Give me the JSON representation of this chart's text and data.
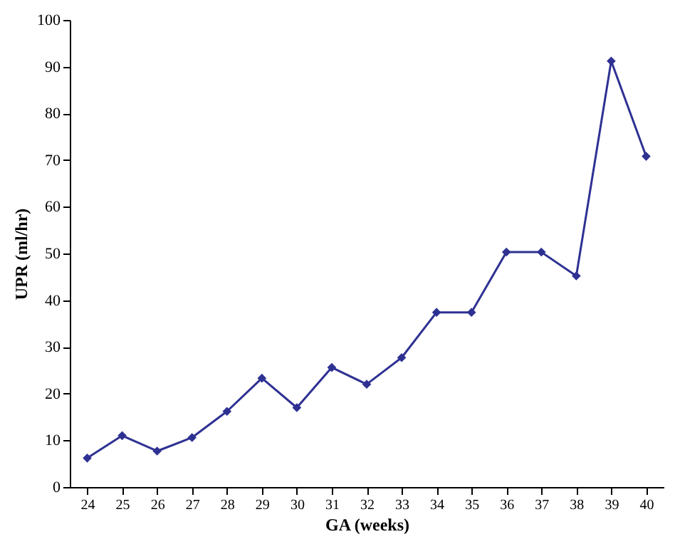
{
  "chart_data": {
    "type": "line",
    "xlabel": "GA (weeks)",
    "ylabel": "UPR (ml/hr)",
    "categories": [
      "24",
      "25",
      "26",
      "27",
      "28",
      "29",
      "30",
      "31",
      "32",
      "33",
      "34",
      "35",
      "36",
      "37",
      "38",
      "39",
      "40"
    ],
    "series": [
      {
        "color": "#2e3192",
        "values": [
          6.2,
          11,
          7.7,
          10.6,
          16.2,
          23.3,
          17,
          25.6,
          22,
          27.7,
          37.4,
          37.4,
          50.3,
          50.3,
          45.2,
          91.2,
          70.8
        ]
      }
    ],
    "ylim": [
      0,
      100
    ],
    "yticks": [
      0,
      10,
      20,
      30,
      40,
      50,
      60,
      70,
      80,
      90,
      100
    ],
    "grid": false,
    "legend": false,
    "marker": "diamond",
    "line_style": "solid"
  }
}
